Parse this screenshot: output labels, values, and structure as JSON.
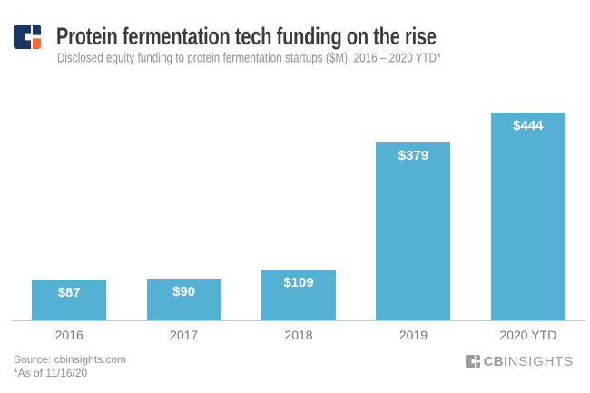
{
  "header": {
    "title": "Protein fermentation tech funding on the rise",
    "subtitle": "Disclosed equity funding to protein fermentation startups ($M), 2016 – 2020 YTD*"
  },
  "brand": {
    "navy": "#1C3664",
    "orange": "#ED6C32"
  },
  "colors": {
    "title": "#3B3B3B",
    "subtitle": "#8D8D8D",
    "footer_text": "#8E8E8E"
  },
  "chart_data": {
    "type": "bar",
    "title": "Protein fermentation tech funding on the rise",
    "subtitle": "Disclosed equity funding to protein fermentation startups ($M), 2016 – 2020 YTD*",
    "categories": [
      "2016",
      "2017",
      "2018",
      "2019",
      "2020 YTD"
    ],
    "values": [
      87,
      90,
      109,
      379,
      444
    ],
    "value_labels": [
      "$87",
      "$90",
      "$109",
      "$379",
      "$444"
    ],
    "unit": "$M",
    "ylim": [
      0,
      465
    ],
    "grid": false,
    "legend": false,
    "bar_color": "#55B1D3",
    "value_label_color": "#FFFFFF",
    "axis_color": "#C9C9C9",
    "tick_label_color": "#757575"
  },
  "footer": {
    "source": "Source: cbinsights.com",
    "footnote": "*As of 11/16/20",
    "brand_bold": "CB",
    "brand_light": "INSIGHTS",
    "brand_color": "#9B9B9B"
  }
}
